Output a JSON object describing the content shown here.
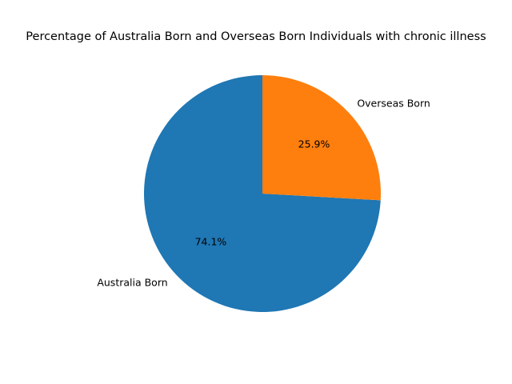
{
  "chart_data": {
    "type": "pie",
    "title": "Percentage of Australia Born and Overseas Born Individuals with chronic illness",
    "labels": [
      "Australia Born",
      "Overseas Born"
    ],
    "values": [
      74.1,
      25.9
    ],
    "value_labels": [
      "74.1%",
      "25.9%"
    ],
    "colors": [
      "#1f77b4",
      "#ff7f0e"
    ],
    "start_angle_deg": 90,
    "direction": "counterclockwise",
    "legend": "none"
  }
}
